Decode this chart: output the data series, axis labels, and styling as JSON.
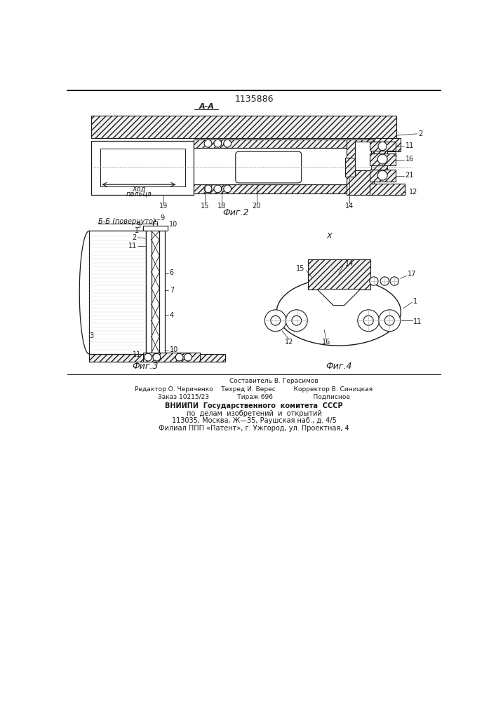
{
  "patent_number": "1135886",
  "fig2_label": "Фиг.2",
  "fig3_label": "Фиг.3",
  "fig4_label": "Фиг.4",
  "section_aa": "А-А",
  "section_bb": "Б-Б (повернуто)",
  "section_x": "Х",
  "label_xod": "Ход",
  "label_paltsa": "пальца",
  "footer_line1": "Составитель В. Герасимов",
  "footer_line2": "Редактор О. Чериченко    Техред И. Верес         Корректор В. Синицкая",
  "footer_line3": "Заказ 10215/23              Тираж 696                    Подписное",
  "footer_line4": "ВНИИПИ  Государственного  комитета  СССР",
  "footer_line5": "по  делам  изобретений  и  открытий",
  "footer_line6": "113035, Москва, Ж—35, Раушская наб., д. 4/5",
  "footer_line7": "Филиал ППП «Патент», г. Ужгород, ул. Проектная, 4",
  "bg_color": "#ffffff",
  "line_color": "#1a1a1a"
}
